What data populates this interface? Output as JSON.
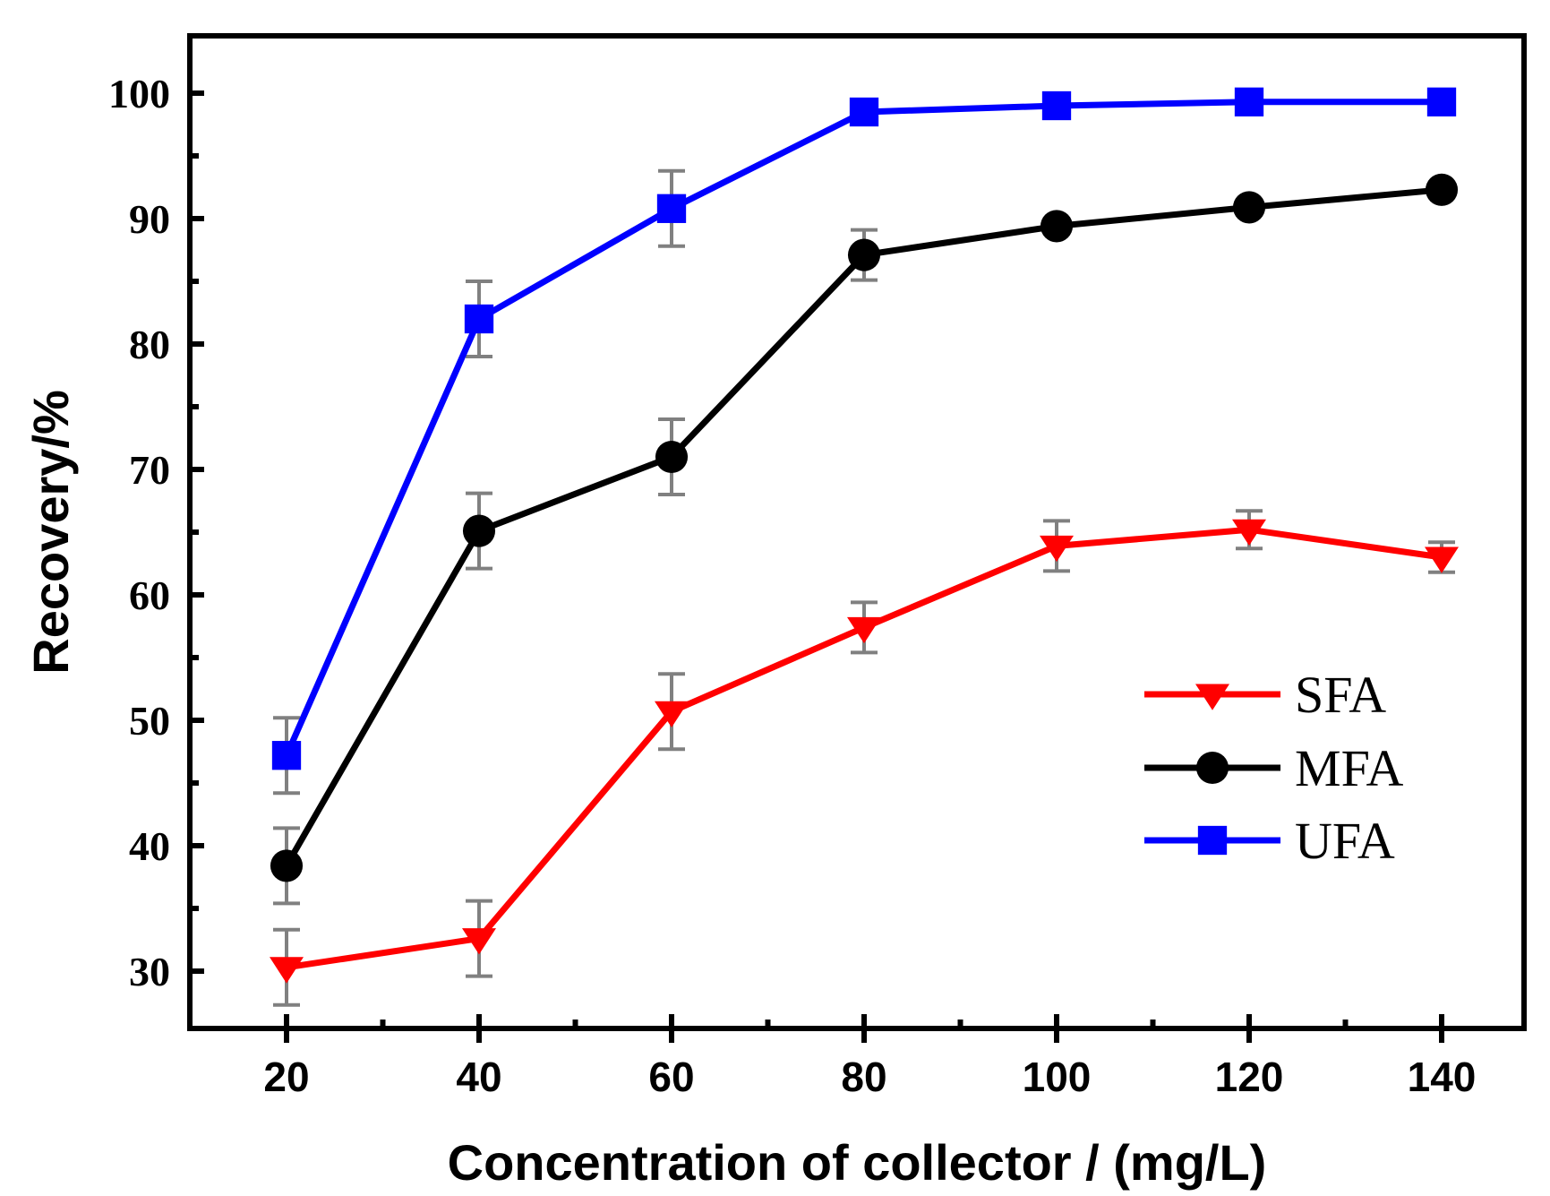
{
  "chart_data": {
    "type": "line",
    "title": "",
    "xlabel": "Concentration of collector / (mg/L)",
    "ylabel": "Recovery/%",
    "xlim": [
      15,
      143
    ],
    "ylim": [
      25,
      105
    ],
    "x_ticks": [
      20,
      40,
      60,
      80,
      100,
      120,
      140
    ],
    "x_minor_ticks": [
      30,
      50,
      70,
      90,
      110,
      130
    ],
    "y_ticks": [
      30,
      40,
      50,
      60,
      70,
      80,
      90,
      100
    ],
    "y_minor_ticks": [
      35,
      45,
      55,
      65,
      75,
      85,
      95
    ],
    "x": [
      20,
      40,
      60,
      80,
      100,
      120,
      140
    ],
    "legend_position": "lower-right",
    "series": [
      {
        "name": "SFA",
        "color": "#ff0000",
        "marker": "triangle-down",
        "values": [
          30.3,
          32.6,
          50.7,
          57.4,
          63.9,
          65.2,
          63.0
        ],
        "errors": [
          3.0,
          3.0,
          3.0,
          2.0,
          2.0,
          1.5,
          1.2
        ]
      },
      {
        "name": "MFA",
        "color": "#000000",
        "marker": "circle",
        "values": [
          38.4,
          65.1,
          71.0,
          87.1,
          89.4,
          90.9,
          92.3
        ],
        "errors": [
          3.0,
          3.0,
          3.0,
          2.0,
          0.5,
          0.5,
          0.5
        ]
      },
      {
        "name": "UFA",
        "color": "#0000ff",
        "marker": "square",
        "values": [
          47.2,
          82.0,
          90.8,
          98.5,
          99.0,
          99.3,
          99.3
        ],
        "errors": [
          3.0,
          3.0,
          3.0,
          0.5,
          0.5,
          0.5,
          0.5
        ]
      }
    ],
    "error_bar_color": "#808080"
  }
}
